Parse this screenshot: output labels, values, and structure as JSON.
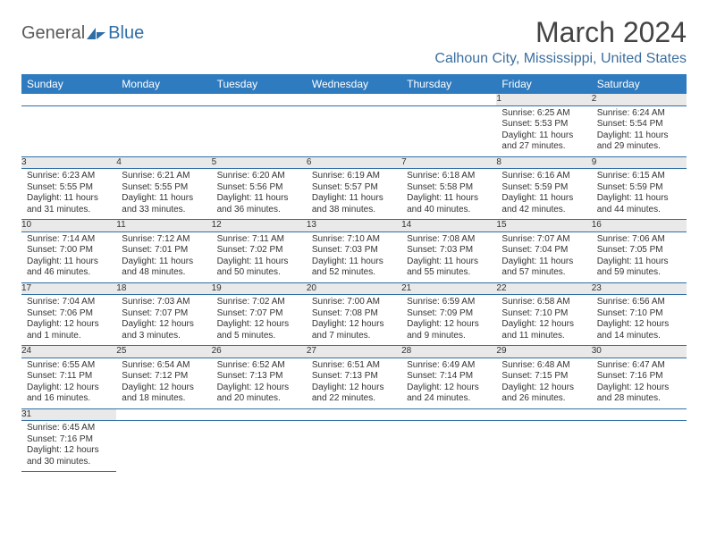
{
  "logo": {
    "text1": "General",
    "text2": "Blue"
  },
  "title": "March 2024",
  "location": "Calhoun City, Mississippi, United States",
  "weekdays": [
    "Sunday",
    "Monday",
    "Tuesday",
    "Wednesday",
    "Thursday",
    "Friday",
    "Saturday"
  ],
  "colors": {
    "header_bg": "#2f7bbf",
    "header_fg": "#ffffff",
    "daynum_bg": "#e9e9e9",
    "rule": "#2f6fa8",
    "location_fg": "#3d6f9e",
    "title_fg": "#444444"
  },
  "first_weekday": 5,
  "num_days": 31,
  "days": {
    "1": {
      "sunrise": "6:25 AM",
      "sunset": "5:53 PM",
      "daylight": "11 hours and 27 minutes."
    },
    "2": {
      "sunrise": "6:24 AM",
      "sunset": "5:54 PM",
      "daylight": "11 hours and 29 minutes."
    },
    "3": {
      "sunrise": "6:23 AM",
      "sunset": "5:55 PM",
      "daylight": "11 hours and 31 minutes."
    },
    "4": {
      "sunrise": "6:21 AM",
      "sunset": "5:55 PM",
      "daylight": "11 hours and 33 minutes."
    },
    "5": {
      "sunrise": "6:20 AM",
      "sunset": "5:56 PM",
      "daylight": "11 hours and 36 minutes."
    },
    "6": {
      "sunrise": "6:19 AM",
      "sunset": "5:57 PM",
      "daylight": "11 hours and 38 minutes."
    },
    "7": {
      "sunrise": "6:18 AM",
      "sunset": "5:58 PM",
      "daylight": "11 hours and 40 minutes."
    },
    "8": {
      "sunrise": "6:16 AM",
      "sunset": "5:59 PM",
      "daylight": "11 hours and 42 minutes."
    },
    "9": {
      "sunrise": "6:15 AM",
      "sunset": "5:59 PM",
      "daylight": "11 hours and 44 minutes."
    },
    "10": {
      "sunrise": "7:14 AM",
      "sunset": "7:00 PM",
      "daylight": "11 hours and 46 minutes."
    },
    "11": {
      "sunrise": "7:12 AM",
      "sunset": "7:01 PM",
      "daylight": "11 hours and 48 minutes."
    },
    "12": {
      "sunrise": "7:11 AM",
      "sunset": "7:02 PM",
      "daylight": "11 hours and 50 minutes."
    },
    "13": {
      "sunrise": "7:10 AM",
      "sunset": "7:03 PM",
      "daylight": "11 hours and 52 minutes."
    },
    "14": {
      "sunrise": "7:08 AM",
      "sunset": "7:03 PM",
      "daylight": "11 hours and 55 minutes."
    },
    "15": {
      "sunrise": "7:07 AM",
      "sunset": "7:04 PM",
      "daylight": "11 hours and 57 minutes."
    },
    "16": {
      "sunrise": "7:06 AM",
      "sunset": "7:05 PM",
      "daylight": "11 hours and 59 minutes."
    },
    "17": {
      "sunrise": "7:04 AM",
      "sunset": "7:06 PM",
      "daylight": "12 hours and 1 minute."
    },
    "18": {
      "sunrise": "7:03 AM",
      "sunset": "7:07 PM",
      "daylight": "12 hours and 3 minutes."
    },
    "19": {
      "sunrise": "7:02 AM",
      "sunset": "7:07 PM",
      "daylight": "12 hours and 5 minutes."
    },
    "20": {
      "sunrise": "7:00 AM",
      "sunset": "7:08 PM",
      "daylight": "12 hours and 7 minutes."
    },
    "21": {
      "sunrise": "6:59 AM",
      "sunset": "7:09 PM",
      "daylight": "12 hours and 9 minutes."
    },
    "22": {
      "sunrise": "6:58 AM",
      "sunset": "7:10 PM",
      "daylight": "12 hours and 11 minutes."
    },
    "23": {
      "sunrise": "6:56 AM",
      "sunset": "7:10 PM",
      "daylight": "12 hours and 14 minutes."
    },
    "24": {
      "sunrise": "6:55 AM",
      "sunset": "7:11 PM",
      "daylight": "12 hours and 16 minutes."
    },
    "25": {
      "sunrise": "6:54 AM",
      "sunset": "7:12 PM",
      "daylight": "12 hours and 18 minutes."
    },
    "26": {
      "sunrise": "6:52 AM",
      "sunset": "7:13 PM",
      "daylight": "12 hours and 20 minutes."
    },
    "27": {
      "sunrise": "6:51 AM",
      "sunset": "7:13 PM",
      "daylight": "12 hours and 22 minutes."
    },
    "28": {
      "sunrise": "6:49 AM",
      "sunset": "7:14 PM",
      "daylight": "12 hours and 24 minutes."
    },
    "29": {
      "sunrise": "6:48 AM",
      "sunset": "7:15 PM",
      "daylight": "12 hours and 26 minutes."
    },
    "30": {
      "sunrise": "6:47 AM",
      "sunset": "7:16 PM",
      "daylight": "12 hours and 28 minutes."
    },
    "31": {
      "sunrise": "6:45 AM",
      "sunset": "7:16 PM",
      "daylight": "12 hours and 30 minutes."
    }
  },
  "labels": {
    "sunrise": "Sunrise",
    "sunset": "Sunset",
    "daylight": "Daylight"
  }
}
